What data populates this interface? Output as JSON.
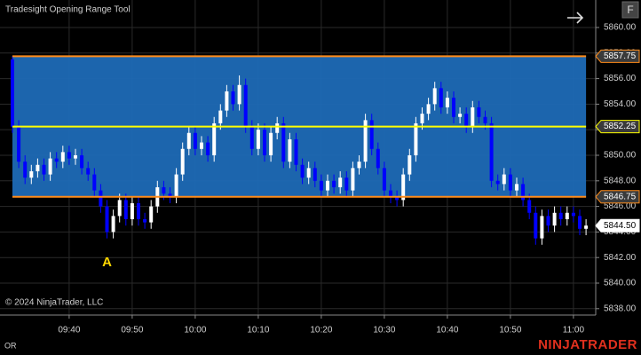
{
  "title": "Tradesight Opening Range Tool",
  "copyright": "© 2024 NinjaTrader, LLC",
  "footer_label": "OR",
  "logo": "NINJATRADER",
  "button": "F",
  "chart_data": {
    "type": "candlestick",
    "x": [
      "09:31",
      "09:32",
      "09:33",
      "09:34",
      "09:35",
      "09:36",
      "09:37",
      "09:38",
      "09:39",
      "09:40",
      "09:41",
      "09:42",
      "09:43",
      "09:44",
      "09:45",
      "09:46",
      "09:47",
      "09:48",
      "09:49",
      "09:50",
      "09:51",
      "09:52",
      "09:53",
      "09:54",
      "09:55",
      "09:56",
      "09:57",
      "09:58",
      "09:59",
      "10:00",
      "10:01",
      "10:02",
      "10:03",
      "10:04",
      "10:05",
      "10:06",
      "10:07",
      "10:08",
      "10:09",
      "10:10",
      "10:11",
      "10:12",
      "10:13",
      "10:14",
      "10:15",
      "10:16",
      "10:17",
      "10:18",
      "10:19",
      "10:20",
      "10:21",
      "10:22",
      "10:23",
      "10:24",
      "10:25",
      "10:26",
      "10:27",
      "10:28",
      "10:29",
      "10:30",
      "10:31",
      "10:32",
      "10:33",
      "10:34",
      "10:35",
      "10:36",
      "10:37",
      "10:38",
      "10:39",
      "10:40",
      "10:41",
      "10:42",
      "10:43",
      "10:44",
      "10:45",
      "10:46",
      "10:47",
      "10:48",
      "10:49",
      "10:50",
      "10:51",
      "10:52",
      "10:53",
      "10:54",
      "10:55",
      "10:56",
      "10:57",
      "10:58",
      "10:59",
      "11:00",
      "11:01",
      "11:02"
    ],
    "open": [
      5857.5,
      5852.25,
      5849.5,
      5848.25,
      5848.75,
      5849.25,
      5848.5,
      5849.75,
      5849.5,
      5850.25,
      5849.75,
      5850,
      5849,
      5848.5,
      5847.25,
      5846,
      5844,
      5845.25,
      5846.5,
      5845,
      5846.25,
      5845,
      5844.75,
      5846,
      5847.5,
      5847,
      5846.75,
      5848.5,
      5850.5,
      5851.75,
      5850.5,
      5851,
      5850,
      5852.5,
      5853.5,
      5855,
      5854,
      5855.5,
      5852.25,
      5850.5,
      5852,
      5850,
      5851.75,
      5852.5,
      5849.5,
      5851.25,
      5849.25,
      5848.25,
      5849,
      5848,
      5847.25,
      5848,
      5847.5,
      5848.25,
      5847.25,
      5849,
      5849.5,
      5852.75,
      5850.5,
      5849,
      5847.25,
      5846.75,
      5846.5,
      5848.5,
      5850,
      5852.5,
      5853.25,
      5854,
      5855.25,
      5853.75,
      5854.5,
      5853,
      5853.25,
      5852.25,
      5853.75,
      5853,
      5852.5,
      5848,
      5847.75,
      5848.5,
      5847.25,
      5847.75,
      5846.5,
      5845.5,
      5843.5,
      5845.25,
      5844.5,
      5845.5,
      5845,
      5845.5,
      5845.25,
      5844.25
    ],
    "high": [
      5857.75,
      5852.75,
      5850,
      5849.25,
      5849.75,
      5849.75,
      5850.25,
      5850.25,
      5850.75,
      5850.75,
      5850.5,
      5850.5,
      5849.5,
      5849,
      5847.75,
      5846.5,
      5845.75,
      5847,
      5847,
      5846.75,
      5846.75,
      5845.5,
      5846.5,
      5848,
      5848,
      5847.5,
      5849,
      5851,
      5852.25,
      5852.25,
      5851.5,
      5851.5,
      5853,
      5854,
      5855.5,
      5855.5,
      5856.25,
      5856,
      5852.75,
      5852.5,
      5852.5,
      5852.25,
      5853,
      5853,
      5851.75,
      5851.75,
      5849.75,
      5849.5,
      5849.5,
      5848.5,
      5848.5,
      5848.5,
      5848.75,
      5848.75,
      5849.5,
      5850,
      5853.25,
      5853.25,
      5851,
      5849.5,
      5847.75,
      5847.25,
      5849,
      5850.5,
      5853,
      5853.75,
      5854.5,
      5855.75,
      5855.75,
      5855,
      5855,
      5853.75,
      5853.75,
      5854.25,
      5854.25,
      5853.5,
      5853,
      5848.5,
      5849,
      5849,
      5848.25,
      5848.25,
      5847,
      5846,
      5845.75,
      5845.75,
      5846,
      5846,
      5846,
      5846,
      5845.75,
      5845
    ],
    "low": [
      5851.75,
      5849,
      5847.75,
      5847.75,
      5848.25,
      5848,
      5848,
      5849,
      5849,
      5849.25,
      5849.25,
      5848.5,
      5848,
      5846.75,
      5845.5,
      5843.5,
      5843.5,
      5844.75,
      5844.5,
      5844.5,
      5844.5,
      5844.25,
      5844.25,
      5845.5,
      5846.5,
      5846.25,
      5846.25,
      5848,
      5850,
      5850,
      5850,
      5849.5,
      5849.5,
      5852,
      5853,
      5853.5,
      5853.5,
      5851.75,
      5850,
      5850,
      5849.5,
      5849.5,
      5851.25,
      5849,
      5849,
      5848.75,
      5847.75,
      5847.75,
      5847.5,
      5846.75,
      5846.75,
      5847,
      5847,
      5846.75,
      5846.75,
      5848.5,
      5849,
      5850,
      5848.5,
      5846.75,
      5846.25,
      5846,
      5846,
      5848,
      5849.5,
      5852,
      5852.75,
      5853.5,
      5853.25,
      5853.25,
      5852.5,
      5852.5,
      5851.75,
      5851.75,
      5852.5,
      5852,
      5847.5,
      5847.25,
      5847.25,
      5846.75,
      5846.75,
      5846,
      5845,
      5843,
      5843,
      5844,
      5844,
      5844.5,
      5844.5,
      5844.75,
      5843.75,
      5843.75
    ],
    "close": [
      5852.25,
      5849.5,
      5848.25,
      5848.75,
      5849.25,
      5848.5,
      5849.75,
      5849.5,
      5850.25,
      5849.75,
      5850,
      5849,
      5848.5,
      5847.25,
      5846,
      5844,
      5845.25,
      5846.5,
      5845,
      5846.25,
      5845,
      5844.75,
      5846,
      5847.5,
      5847,
      5846.75,
      5848.5,
      5850.5,
      5851.75,
      5850.5,
      5851,
      5850,
      5852.5,
      5853.5,
      5855,
      5854,
      5855.5,
      5852.25,
      5850.5,
      5852,
      5850,
      5851.75,
      5852.5,
      5849.5,
      5851.25,
      5849.25,
      5848.25,
      5849,
      5848,
      5847.25,
      5848,
      5847.5,
      5848.25,
      5847.25,
      5849,
      5849.5,
      5852.75,
      5850.5,
      5849,
      5847.25,
      5846.75,
      5846.5,
      5848.5,
      5850,
      5852.5,
      5853.25,
      5854,
      5855.25,
      5853.75,
      5854.5,
      5853,
      5853.25,
      5852.25,
      5853.75,
      5853,
      5852.5,
      5848,
      5847.75,
      5848.5,
      5847.25,
      5847.75,
      5846.5,
      5845.5,
      5843.5,
      5845.25,
      5844.5,
      5845.5,
      5845,
      5845.5,
      5845.25,
      5844.25,
      5844.5
    ],
    "up_color": "#ffffff",
    "down_color": "#0000ff",
    "ylim": [
      5837.5,
      5862.15
    ],
    "yticks": [
      {
        "value": 5838,
        "label": "5838.00"
      },
      {
        "value": 5840,
        "label": "5840.00"
      },
      {
        "value": 5842,
        "label": "5842.00"
      },
      {
        "value": 5844,
        "label": "5844.00"
      },
      {
        "value": 5846,
        "label": "5846.00"
      },
      {
        "value": 5848,
        "label": "5848.00"
      },
      {
        "value": 5850,
        "label": "5850.00"
      },
      {
        "value": 5852,
        "label": "5852.00"
      },
      {
        "value": 5854,
        "label": "5854.00"
      },
      {
        "value": 5856,
        "label": "5856.00"
      },
      {
        "value": 5858,
        "label": "5858.00"
      },
      {
        "value": 5860,
        "label": "5860.00"
      }
    ],
    "xticks": [
      "09:40",
      "09:50",
      "10:00",
      "10:10",
      "10:20",
      "10:30",
      "10:40",
      "10:50",
      "11:00"
    ],
    "grid": true,
    "range_fill": "#1d6ab6",
    "levels": [
      {
        "value": 5857.75,
        "color": "#ff8c1a"
      },
      {
        "value": 5852.25,
        "color": "#ffff00"
      },
      {
        "value": 5846.75,
        "color": "#ff8c1a"
      }
    ],
    "last_price": {
      "value": 5844.5,
      "label": "5844.50"
    },
    "annotations": [
      {
        "text": "A",
        "x": "09:46",
        "y": 5842.3,
        "color": "#ffd700"
      }
    ]
  }
}
